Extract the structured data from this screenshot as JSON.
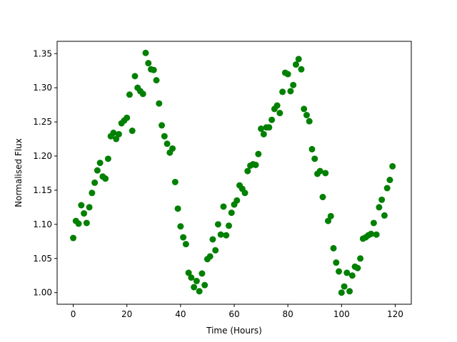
{
  "chart_data": {
    "type": "scatter",
    "xlabel": "Time (Hours)",
    "ylabel": "Normalised Flux",
    "xlim": [
      -6,
      126
    ],
    "ylim": [
      0.983,
      1.368
    ],
    "xticks": [
      0,
      20,
      40,
      60,
      80,
      100,
      120
    ],
    "yticks": [
      1.0,
      1.05,
      1.1,
      1.15,
      1.2,
      1.25,
      1.3,
      1.35
    ],
    "grid": false,
    "marker_color": "#008000",
    "x": [
      0,
      1,
      2,
      3,
      4,
      5,
      6,
      7,
      8,
      9,
      10,
      11,
      12,
      13,
      14,
      15,
      16,
      17,
      18,
      19,
      20,
      21,
      22,
      23,
      24,
      25,
      26,
      27,
      28,
      29,
      30,
      31,
      32,
      33,
      34,
      35,
      36,
      37,
      38,
      39,
      40,
      41,
      42,
      43,
      44,
      45,
      46,
      47,
      48,
      49,
      50,
      51,
      52,
      53,
      54,
      55,
      56,
      57,
      58,
      59,
      60,
      61,
      62,
      63,
      64,
      65,
      66,
      67,
      68,
      69,
      70,
      71,
      72,
      73,
      74,
      75,
      76,
      77,
      78,
      79,
      80,
      81,
      82,
      83,
      84,
      85,
      86,
      87,
      88,
      89,
      90,
      91,
      92,
      93,
      94,
      95,
      96,
      97,
      98,
      99,
      100,
      101,
      102,
      103,
      104,
      105,
      106,
      107,
      108,
      109,
      110,
      111,
      112,
      113,
      114,
      115,
      116,
      117,
      118,
      119
    ],
    "y": [
      1.08,
      1.105,
      1.101,
      1.128,
      1.116,
      1.102,
      1.125,
      1.146,
      1.161,
      1.179,
      1.19,
      1.17,
      1.167,
      1.196,
      1.229,
      1.234,
      1.225,
      1.232,
      1.248,
      1.252,
      1.256,
      1.29,
      1.237,
      1.317,
      1.3,
      1.295,
      1.291,
      1.351,
      1.336,
      1.327,
      1.326,
      1.311,
      1.277,
      1.245,
      1.229,
      1.218,
      1.205,
      1.211,
      1.162,
      1.123,
      1.097,
      1.081,
      1.071,
      1.029,
      1.022,
      1.008,
      1.017,
      1.002,
      1.028,
      1.011,
      1.049,
      1.053,
      1.078,
      1.062,
      1.1,
      1.085,
      1.126,
      1.084,
      1.098,
      1.117,
      1.129,
      1.135,
      1.157,
      1.152,
      1.146,
      1.178,
      1.186,
      1.188,
      1.187,
      1.203,
      1.24,
      1.232,
      1.242,
      1.242,
      1.253,
      1.269,
      1.274,
      1.263,
      1.294,
      1.322,
      1.32,
      1.295,
      1.304,
      1.334,
      1.342,
      1.327,
      1.269,
      1.26,
      1.251,
      1.21,
      1.196,
      1.174,
      1.178,
      1.14,
      1.175,
      1.105,
      1.112,
      1.065,
      1.044,
      1.031,
      1.0,
      1.009,
      1.029,
      1.002,
      1.025,
      1.038,
      1.036,
      1.05,
      1.079,
      1.081,
      1.084,
      1.086,
      1.102,
      1.085,
      1.125,
      1.136,
      1.113,
      1.153,
      1.165,
      1.185
    ]
  }
}
